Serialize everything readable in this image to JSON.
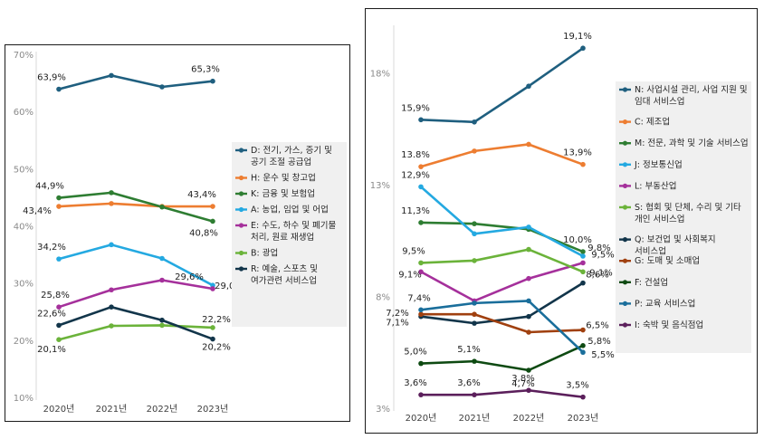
{
  "chart_data": [
    {
      "type": "line",
      "categories": [
        "2020년",
        "2021년",
        "2022년",
        "2023년"
      ],
      "ylim": [
        10,
        70
      ],
      "yticks": [
        "10%",
        "20%",
        "30%",
        "40%",
        "50%",
        "60%",
        "70%"
      ],
      "grid": false,
      "legend_position": "right",
      "series": [
        {
          "name": "D: 전기, 가스, 증기 및 공기 조절 공급업",
          "color": "#1F5F7F",
          "values": [
            63.9,
            66.3,
            64.3,
            65.3
          ],
          "labels": [
            "63,9%",
            "",
            "",
            "65,3%"
          ]
        },
        {
          "name": "H: 운수 및 창고업",
          "color": "#ED7D31",
          "values": [
            43.4,
            43.9,
            43.4,
            43.4
          ],
          "labels": [
            "43,4%",
            "",
            "",
            "43,4%"
          ]
        },
        {
          "name": "K: 금융 및 보험업",
          "color": "#2E7D32",
          "values": [
            44.9,
            45.8,
            43.3,
            40.8
          ],
          "labels": [
            "44,9%",
            "",
            "",
            "40,8%"
          ]
        },
        {
          "name": "A: 농업, 임업 및 어업",
          "color": "#24A9E1",
          "values": [
            34.2,
            36.7,
            34.3,
            29.6
          ],
          "labels": [
            "34,2%",
            "",
            "",
            "29,6%"
          ]
        },
        {
          "name": "E: 수도, 하수 및 폐기물 처리, 원료 재생업",
          "color": "#A5309B",
          "values": [
            25.8,
            28.8,
            30.5,
            29.0
          ],
          "labels": [
            "25,8%",
            "",
            "",
            "29,0%"
          ]
        },
        {
          "name": "B: 광업",
          "color": "#6BB33A",
          "values": [
            20.1,
            22.5,
            22.6,
            22.2
          ],
          "labels": [
            "20,1%",
            "",
            "",
            "22,2%"
          ]
        },
        {
          "name": "R: 예술, 스포츠 및 여가관련 서비스업",
          "color": "#12354A",
          "values": [
            22.6,
            25.8,
            23.5,
            20.2
          ],
          "labels": [
            "22,6%",
            "",
            "",
            "20,2%"
          ]
        }
      ]
    },
    {
      "type": "line",
      "categories": [
        "2020년",
        "2021년",
        "2022년",
        "2023년"
      ],
      "ylim": [
        3,
        20
      ],
      "yticks": [
        "3%",
        "8%",
        "13%",
        "18%"
      ],
      "grid": false,
      "legend_position": "right",
      "series": [
        {
          "name": "N: 사업시설 관리, 사업 지원 및 임대 서비스업",
          "color": "#1F5F7F",
          "values": [
            15.9,
            15.8,
            17.4,
            19.1
          ],
          "labels": [
            "15,9%",
            "",
            "",
            "19,1%"
          ]
        },
        {
          "name": "C: 제조업",
          "color": "#ED7D31",
          "values": [
            13.8,
            14.5,
            14.8,
            13.9
          ],
          "labels": [
            "13.8%",
            "",
            "",
            "13,9%"
          ]
        },
        {
          "name": "M: 전문, 과학 및 기술 서비스업",
          "color": "#2E7D32",
          "values": [
            11.3,
            11.25,
            11.0,
            10.0
          ],
          "labels": [
            "11,3%",
            "",
            "",
            "10,0%"
          ]
        },
        {
          "name": "J: 정보통신업",
          "color": "#24A9E1",
          "values": [
            12.9,
            10.8,
            11.1,
            9.8
          ],
          "labels": [
            "12,9%",
            "",
            "",
            "9,8%"
          ]
        },
        {
          "name": "L: 부동산업",
          "color": "#A5309B",
          "values": [
            9.1,
            7.8,
            8.8,
            9.5
          ],
          "labels": [
            "9,1%",
            "",
            "",
            "9,5%"
          ]
        },
        {
          "name": "S: 협회 및 단체, 수리 및 기타 개인 서비스업",
          "color": "#6BB33A",
          "values": [
            9.5,
            9.6,
            10.1,
            9.1
          ],
          "labels": [
            "9,5%",
            "",
            "",
            "9,1%"
          ]
        },
        {
          "name": "Q: 보건업 및 사회복지 서비스업",
          "color": "#12354A",
          "values": [
            7.1,
            6.8,
            7.1,
            8.6
          ],
          "labels": [
            "7,1%",
            "",
            "",
            "8,6%"
          ]
        },
        {
          "name": "G: 도매 및 소매업",
          "color": "#A0400F",
          "values": [
            7.2,
            7.2,
            6.4,
            6.5
          ],
          "labels": [
            "7,2%",
            "",
            "",
            "6,5%"
          ]
        },
        {
          "name": "F: 건설업",
          "color": "#0E4A12",
          "values": [
            5.0,
            5.1,
            4.7,
            5.8
          ],
          "labels": [
            "5,0%",
            "5,1%",
            "4,7%",
            "5,8%"
          ]
        },
        {
          "name": "P: 교육 서비스업",
          "color": "#1A6E9B",
          "values": [
            7.4,
            7.7,
            7.8,
            5.5
          ],
          "labels": [
            "7,4%",
            "",
            "",
            "5,5%"
          ]
        },
        {
          "name": "I: 숙박 및 음식점업",
          "color": "#5B1F5B",
          "values": [
            3.6,
            3.6,
            3.8,
            3.5
          ],
          "labels": [
            "3,6%",
            "3,6%",
            "3,8%",
            "3,5%"
          ]
        }
      ]
    }
  ]
}
